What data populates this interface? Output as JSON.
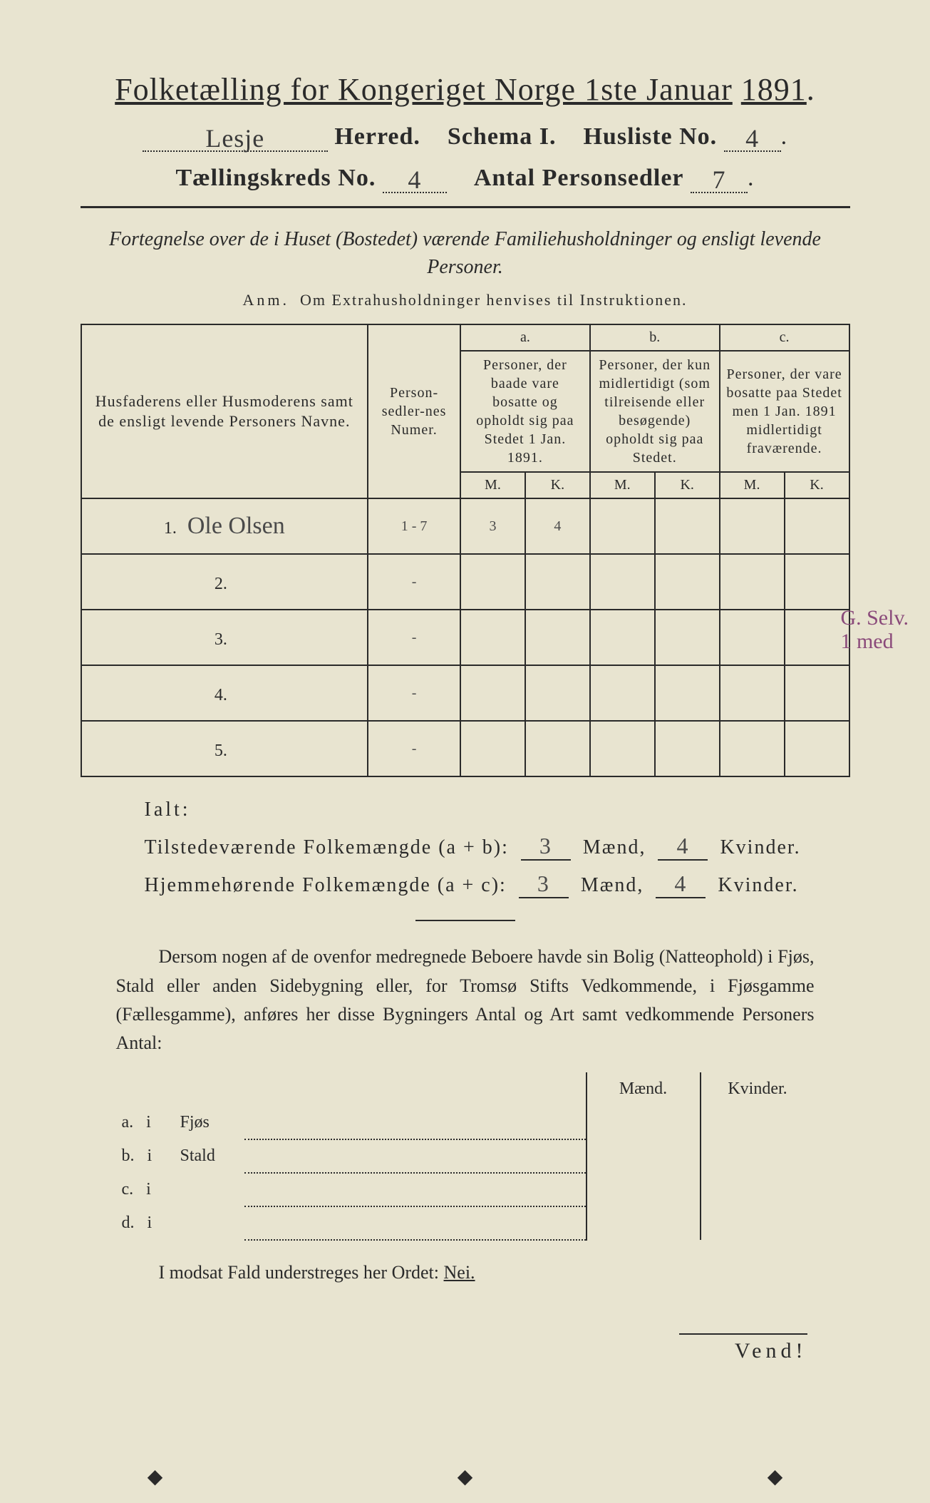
{
  "header": {
    "title_prefix": "Folketælling for Kongeriget Norge 1ste Januar",
    "year": "1891",
    "herred_value": "Lesje",
    "herred_label": "Herred.",
    "schema_label": "Schema I.",
    "husliste_label": "Husliste No.",
    "husliste_value": "4",
    "kreds_label": "Tællingskreds No.",
    "kreds_value": "4",
    "antal_label": "Antal Personsedler",
    "antal_value": "7"
  },
  "heading": {
    "fortegnelse": "Fortegnelse over de i Huset (Bostedet) værende Familiehusholdninger og ensligt levende Personer.",
    "anm_label": "Anm.",
    "anm_text": "Om Extrahusholdninger henvises til Instruktionen."
  },
  "table": {
    "col_name": "Husfaderens eller Husmoderens samt de ensligt levende Personers Navne.",
    "col_num": "Person-sedler-nes Numer.",
    "col_a_label": "a.",
    "col_a_text": "Personer, der baade vare bosatte og opholdt sig paa Stedet 1 Jan. 1891.",
    "col_b_label": "b.",
    "col_b_text": "Personer, der kun midlertidigt (som tilreisende eller besøgende) opholdt sig paa Stedet.",
    "col_c_label": "c.",
    "col_c_text": "Personer, der vare bosatte paa Stedet men 1 Jan. 1891 midlertidigt fraværende.",
    "M": "M.",
    "K": "K.",
    "rows": [
      {
        "n": "1.",
        "name": "Ole Olsen",
        "num": "1 - 7",
        "aM": "3",
        "aK": "4",
        "bM": "",
        "bK": "",
        "cM": "",
        "cK": ""
      },
      {
        "n": "2.",
        "name": "",
        "num": "-",
        "aM": "",
        "aK": "",
        "bM": "",
        "bK": "",
        "cM": "",
        "cK": ""
      },
      {
        "n": "3.",
        "name": "",
        "num": "-",
        "aM": "",
        "aK": "",
        "bM": "",
        "bK": "",
        "cM": "",
        "cK": ""
      },
      {
        "n": "4.",
        "name": "",
        "num": "-",
        "aM": "",
        "aK": "",
        "bM": "",
        "bK": "",
        "cM": "",
        "cK": ""
      },
      {
        "n": "5.",
        "name": "",
        "num": "-",
        "aM": "",
        "aK": "",
        "bM": "",
        "bK": "",
        "cM": "",
        "cK": ""
      }
    ]
  },
  "margin_note": {
    "line1": "G. Selv.",
    "line2": "1 med"
  },
  "totals": {
    "ialt": "Ialt:",
    "tilstede_label": "Tilstedeværende Folkemængde (a + b):",
    "tilstede_m": "3",
    "tilstede_k": "4",
    "hjemme_label": "Hjemmehørende Folkemængde (a + c):",
    "hjemme_m": "3",
    "hjemme_k": "4",
    "maend": "Mænd,",
    "kvinder": "Kvinder."
  },
  "para": "Dersom nogen af de ovenfor medregnede Beboere havde sin Bolig (Natteophold) i Fjøs, Stald eller anden Sidebygning eller, for Tromsø Stifts Vedkommende, i Fjøsgamme (Fællesgamme), anføres her disse Bygningers Antal og Art samt vedkommende Personers Antal:",
  "lower": {
    "maend": "Mænd.",
    "kvinder": "Kvinder.",
    "rows": [
      {
        "letter": "a.",
        "i": "i",
        "label": "Fjøs"
      },
      {
        "letter": "b.",
        "i": "i",
        "label": "Stald"
      },
      {
        "letter": "c.",
        "i": "i",
        "label": ""
      },
      {
        "letter": "d.",
        "i": "i",
        "label": ""
      }
    ]
  },
  "nei": {
    "text": "I modsat Fald understreges her Ordet:",
    "word": "Nei."
  },
  "vend": "Vend!"
}
